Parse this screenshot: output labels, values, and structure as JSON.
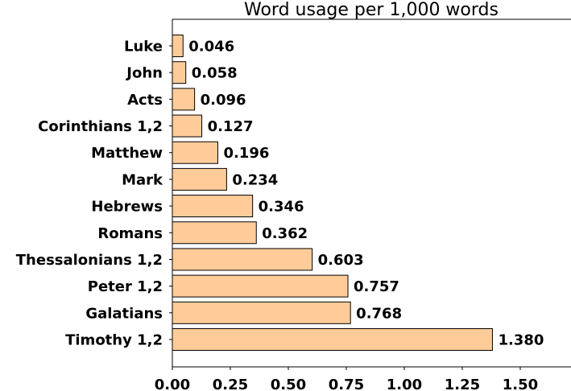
{
  "chart_data": {
    "type": "bar",
    "orientation": "horizontal",
    "title": "Word usage per 1,000 words",
    "xlabel": "",
    "ylabel": "",
    "categories": [
      "Luke",
      "John",
      "Acts",
      "Corinthians 1,2",
      "Matthew",
      "Mark",
      "Hebrews",
      "Romans",
      "Thessalonians 1,2",
      "Peter 1,2",
      "Galatians",
      "Timothy 1,2"
    ],
    "values": [
      0.046,
      0.058,
      0.096,
      0.127,
      0.196,
      0.234,
      0.346,
      0.362,
      0.603,
      0.757,
      0.768,
      1.38
    ],
    "data_labels": [
      "0.046",
      "0.058",
      "0.096",
      "0.127",
      "0.196",
      "0.234",
      "0.346",
      "0.362",
      "0.603",
      "0.757",
      "0.768",
      "1.380"
    ],
    "xticks": [
      "0.00",
      "0.25",
      "0.50",
      "0.75",
      "1.00",
      "1.25",
      "1.50"
    ],
    "xlim": [
      0,
      1.72
    ],
    "grid": false,
    "colors": {
      "bar": "#ffcc99",
      "edge": "#000000"
    }
  }
}
